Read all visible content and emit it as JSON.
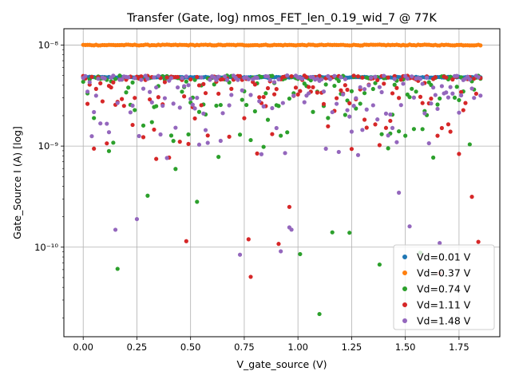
{
  "chart_data": {
    "type": "scatter",
    "title": "Transfer (Gate, log) nmos_FET_len_0.19_wid_7 @ 77K",
    "xlabel": "V_gate_source (V)",
    "ylabel": "Gate_Source I (A) [log]",
    "xlim": [
      -0.09,
      1.94
    ],
    "ylim": [
      1.3e-11,
      1.45e-08
    ],
    "yscale": "log",
    "grid": true,
    "legend_position": "lower right",
    "x_ticks": [
      0.0,
      0.25,
      0.5,
      0.75,
      1.0,
      1.25,
      1.5,
      1.75
    ],
    "x_tick_labels": [
      "0.00",
      "0.25",
      "0.50",
      "0.75",
      "1.00",
      "1.25",
      "1.50",
      "1.75"
    ],
    "y_ticks": [
      1e-10,
      1e-09,
      1e-08
    ],
    "y_tick_labels": [
      "10⁻¹⁰",
      "10⁻⁹",
      "10⁻⁸"
    ],
    "x_range": [
      0.0,
      1.85
    ],
    "series": [
      {
        "name": "Vd=0.01 V",
        "color": "#1f77b4",
        "points": 186,
        "pattern": "constant",
        "value": 4.8e-09
      },
      {
        "name": "Vd=0.37 V",
        "color": "#ff7f0e",
        "points": 186,
        "pattern": "constant",
        "value": 1e-08
      },
      {
        "name": "Vd=0.74 V",
        "color": "#2ca02c",
        "points": 186,
        "pattern": "scatter",
        "max": 5e-09,
        "min": 1.8e-11
      },
      {
        "name": "Vd=1.11 V",
        "color": "#d62728",
        "points": 186,
        "pattern": "scatter",
        "max": 5e-09,
        "min": 4.2e-11
      },
      {
        "name": "Vd=1.48 V",
        "color": "#9467bd",
        "points": 186,
        "pattern": "scatter",
        "max": 5e-09,
        "min": 4.5e-11
      }
    ]
  }
}
